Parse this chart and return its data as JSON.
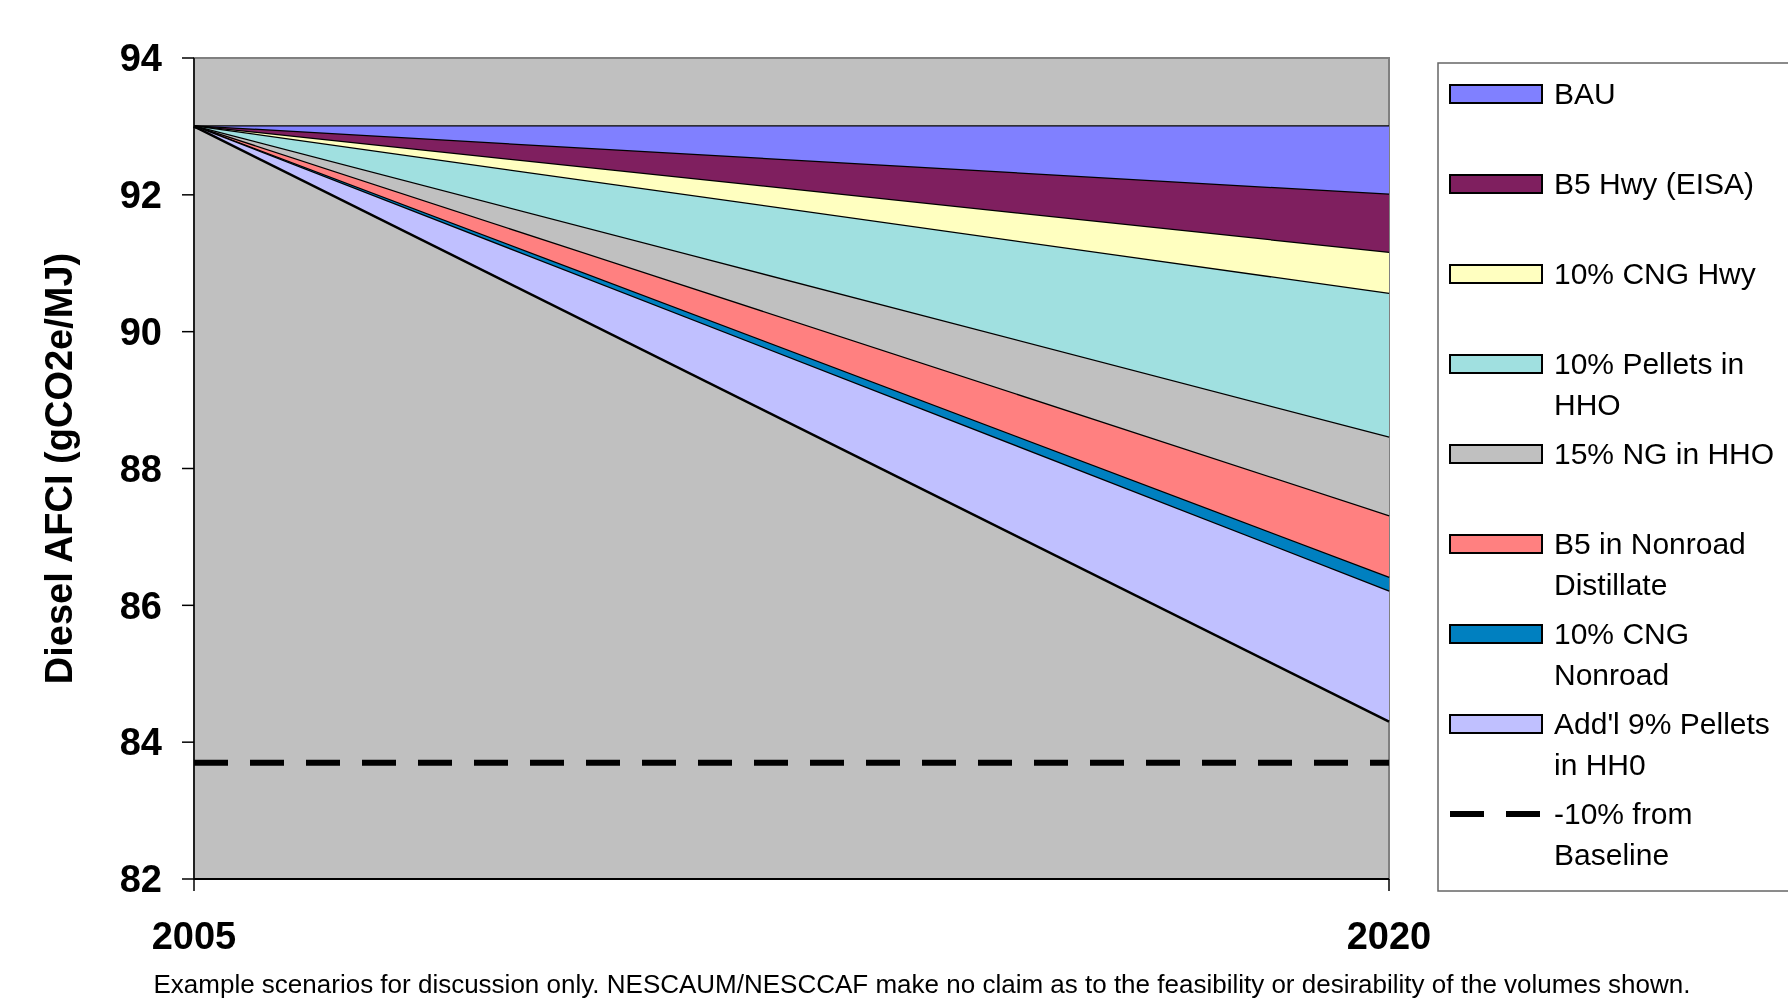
{
  "chart_data": {
    "type": "area",
    "ylabel": "Diesel AFCI (gCO2e/MJ)",
    "x": [
      2005,
      2020
    ],
    "xlim": [
      2005,
      2020
    ],
    "xticks": [
      2005,
      2020
    ],
    "ylim": [
      82,
      94
    ],
    "yticks": [
      82,
      84,
      86,
      88,
      90,
      92,
      94
    ],
    "grid": false,
    "legend": "right",
    "line_style": "solid",
    "series": [
      {
        "type": "line",
        "color": "#000000",
        "values": [
          93,
          93
        ]
      },
      {
        "name": "BAU",
        "color": "#8080ff",
        "values": [
          93,
          92.0
        ]
      },
      {
        "name": "B5 Hwy (EISA)",
        "color": "#7f1f5f",
        "values": [
          93,
          91.15
        ]
      },
      {
        "name": "10% CNG Hwy",
        "color": "#ffffc0",
        "values": [
          93,
          90.55
        ]
      },
      {
        "name": "10% Pellets in HHO",
        "color": "#a0e0e0",
        "values": [
          93,
          88.45
        ]
      },
      {
        "name": "15% NG in HHO",
        "color": "#c0c0c0",
        "values": [
          93,
          87.3
        ]
      },
      {
        "name": "B5 in Nonroad Distillate",
        "color": "#ff8080",
        "values": [
          93,
          86.4
        ]
      },
      {
        "name": "10% CNG Nonroad",
        "color": "#0080c0",
        "values": [
          93,
          86.2
        ]
      },
      {
        "name": "Add'l 9% Pellets in HH0",
        "color": "#c0c0ff",
        "values": [
          93,
          84.3
        ]
      }
    ],
    "ref_lines": [
      {
        "axis": "y",
        "value": 83.7,
        "label": "-10% from Baseline",
        "color": "#000000",
        "line_style": "dashed"
      }
    ],
    "annotations": [
      "Example scenarios for discussion only. NESCAUM/NESCCAF make no claim as to the feasibility or desirability of the volumes shown."
    ]
  }
}
